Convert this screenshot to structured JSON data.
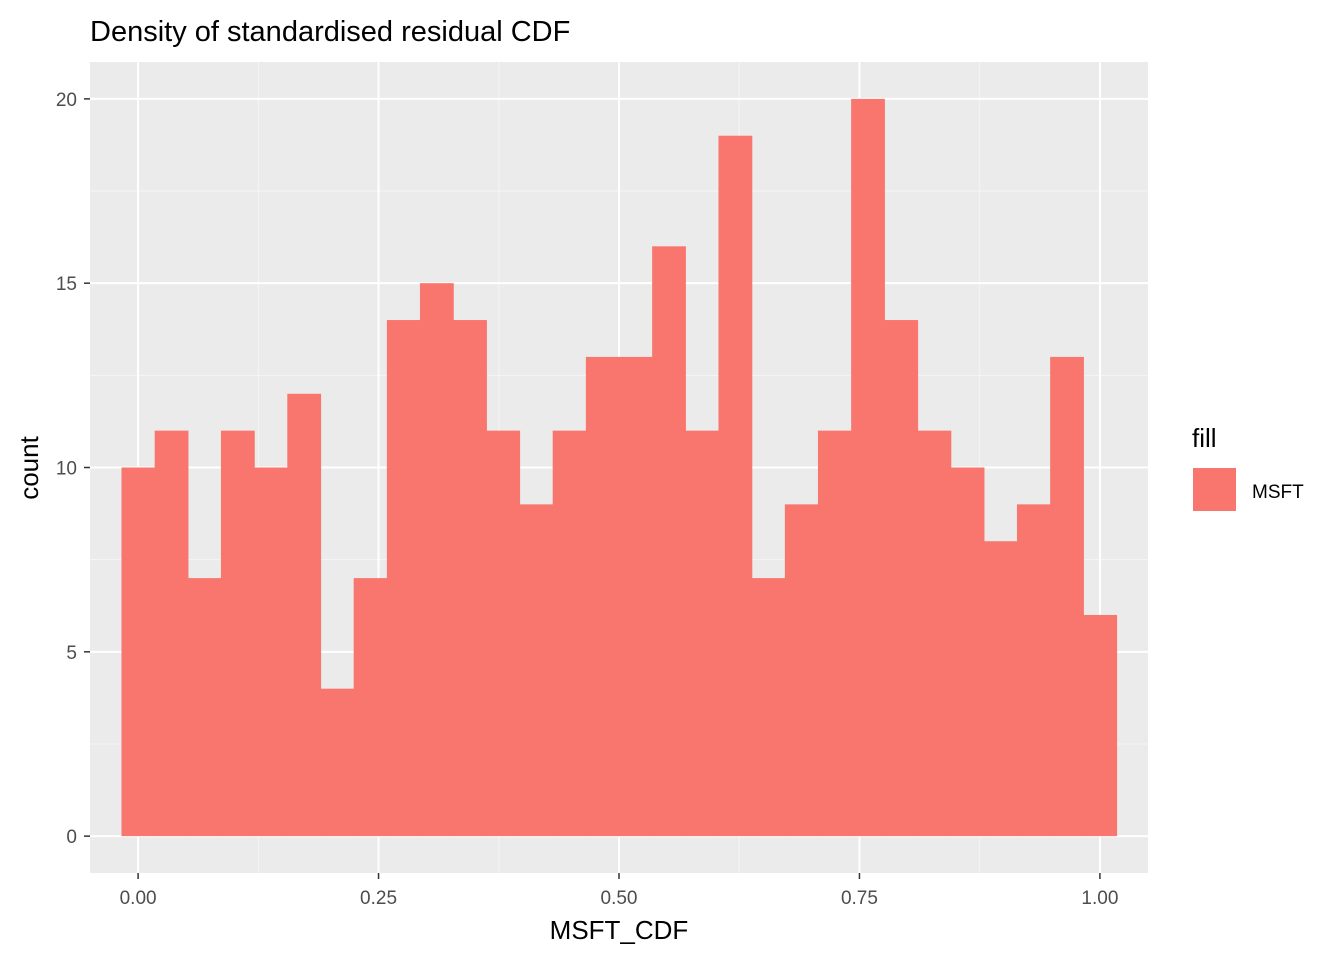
{
  "chart_data": {
    "type": "bar",
    "title": "Density of standardised residual CDF",
    "xlabel": "MSFT_CDF",
    "ylabel": "count",
    "xlim": [
      -0.05,
      1.05
    ],
    "ylim": [
      -1,
      21
    ],
    "x_ticks": [
      0,
      0.25,
      0.5,
      0.75,
      1
    ],
    "x_tick_labels": [
      "0.00",
      "0.25",
      "0.50",
      "0.75",
      "1.00"
    ],
    "y_ticks": [
      0,
      5,
      10,
      15,
      20
    ],
    "y_tick_labels": [
      "0",
      "5",
      "10",
      "15",
      "20"
    ],
    "bin_width": 0.0345,
    "bin_centers": [
      0.0,
      0.0345,
      0.069,
      0.1034,
      0.1379,
      0.1724,
      0.2069,
      0.2414,
      0.2759,
      0.3103,
      0.3448,
      0.3793,
      0.4138,
      0.4483,
      0.4828,
      0.5172,
      0.5517,
      0.5862,
      0.6207,
      0.6552,
      0.6897,
      0.7241,
      0.7586,
      0.7931,
      0.8276,
      0.8621,
      0.8966,
      0.931,
      0.9655,
      1.0
    ],
    "series": [
      {
        "name": "MSFT",
        "values": [
          10,
          11,
          7,
          11,
          10,
          12,
          4,
          7,
          14,
          15,
          14,
          11,
          9,
          11,
          13,
          13,
          16,
          11,
          19,
          7,
          9,
          11,
          20,
          14,
          11,
          10,
          8,
          9,
          13,
          6
        ]
      }
    ],
    "grid": true,
    "legend": {
      "title": "fill",
      "placement": "right",
      "entries": [
        {
          "label": "MSFT",
          "color": "#F8766D"
        }
      ]
    },
    "colors": {
      "bar": "#F8766D",
      "panel_background": "#EBEBEB",
      "grid_major": "#FFFFFF",
      "grid_minor": "#F5F5F5"
    }
  }
}
